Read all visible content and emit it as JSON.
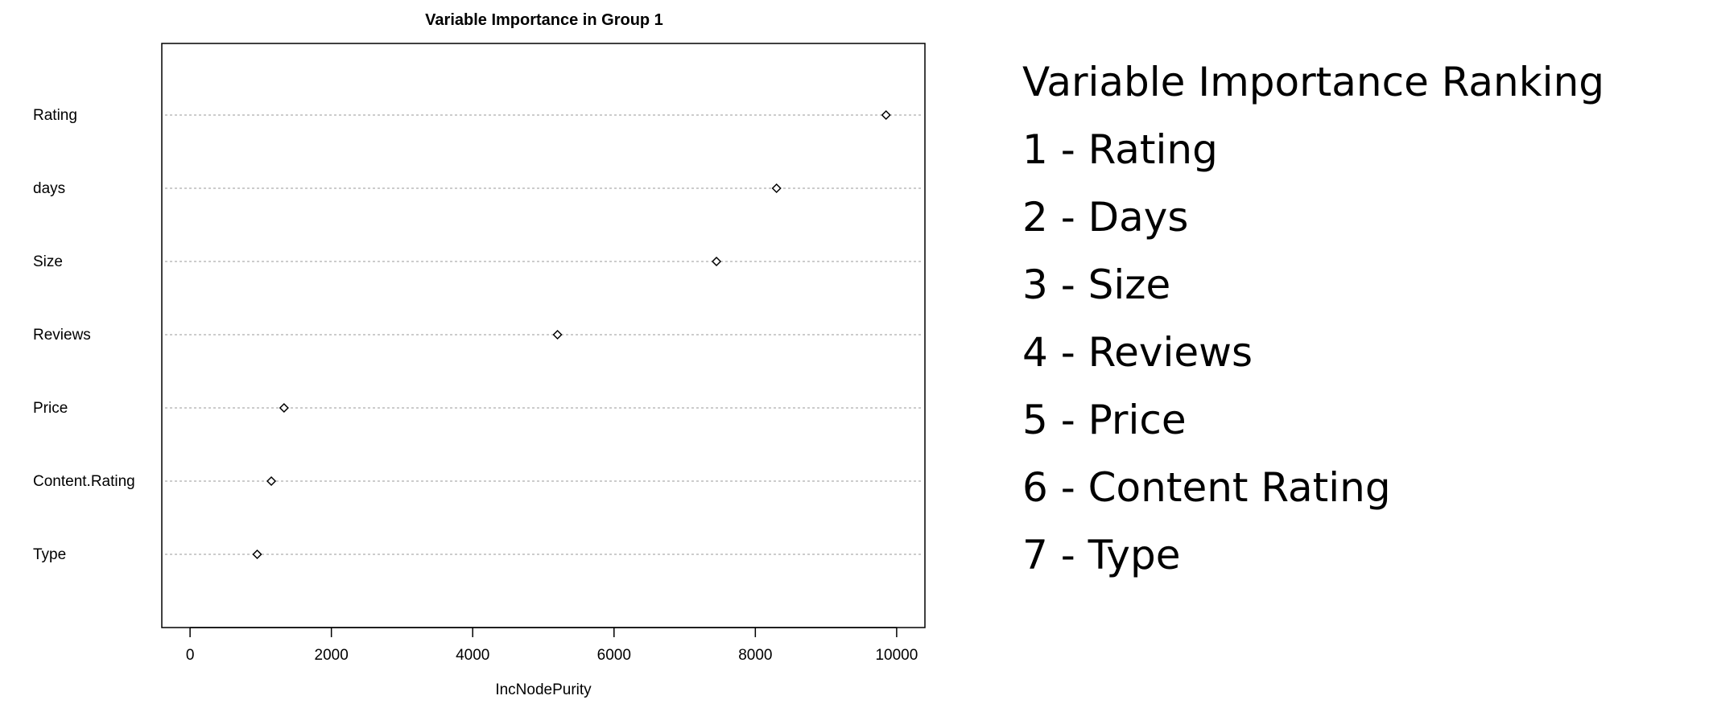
{
  "chart_data": {
    "type": "scatter",
    "title": "Variable Importance in Group 1",
    "xlabel": "IncNodePurity",
    "ylabel": "",
    "categories": [
      "Rating",
      "days",
      "Size",
      "Reviews",
      "Price",
      "Content.Rating",
      "Type"
    ],
    "values": [
      9850,
      8300,
      7450,
      5200,
      1330,
      1150,
      950
    ],
    "xlim": [
      -400,
      10400
    ],
    "xticks": [
      0,
      2000,
      4000,
      6000,
      8000,
      10000
    ],
    "xtick_labels": [
      "0",
      "2000",
      "4000",
      "6000",
      "8000",
      "10000"
    ],
    "grid": true,
    "marker": "diamond"
  },
  "ranking": {
    "title": "Variable Importance Ranking",
    "items": [
      "1 - Rating",
      "2 - Days",
      "3 - Size",
      "4 - Reviews",
      "5 - Price",
      "6 - Content Rating",
      "7 - Type"
    ]
  }
}
